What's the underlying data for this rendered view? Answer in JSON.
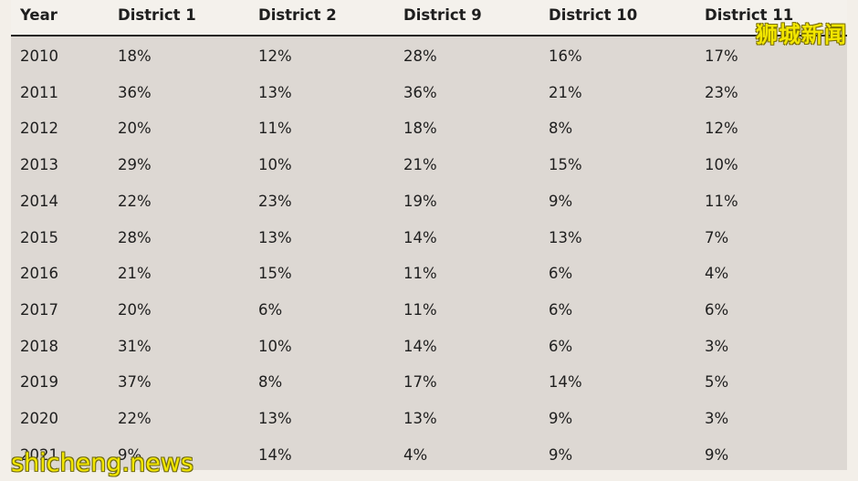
{
  "chart_data": {
    "type": "table",
    "columns": [
      "Year",
      "District 1",
      "District 2",
      "District 9",
      "District 10",
      "District 11"
    ],
    "rows": [
      [
        "2010",
        "18%",
        "12%",
        "28%",
        "16%",
        "17%"
      ],
      [
        "2011",
        "36%",
        "13%",
        "36%",
        "21%",
        "23%"
      ],
      [
        "2012",
        "20%",
        "11%",
        "18%",
        "8%",
        "12%"
      ],
      [
        "2013",
        "29%",
        "10%",
        "21%",
        "15%",
        "10%"
      ],
      [
        "2014",
        "22%",
        "23%",
        "19%",
        "9%",
        "11%"
      ],
      [
        "2015",
        "28%",
        "13%",
        "14%",
        "13%",
        "7%"
      ],
      [
        "2016",
        "21%",
        "15%",
        "11%",
        "6%",
        "4%"
      ],
      [
        "2017",
        "20%",
        "6%",
        "11%",
        "6%",
        "6%"
      ],
      [
        "2018",
        "31%",
        "10%",
        "14%",
        "6%",
        "3%"
      ],
      [
        "2019",
        "37%",
        "8%",
        "17%",
        "14%",
        "5%"
      ],
      [
        "2020",
        "22%",
        "13%",
        "13%",
        "9%",
        "3%"
      ],
      [
        "2021",
        "9%",
        "14%",
        "4%",
        "9%",
        "9%"
      ]
    ]
  },
  "watermarks": {
    "top_right": "狮城新闻",
    "bottom_left": "shicheng.news"
  },
  "colors": {
    "header_bg": "#f4f1ec",
    "body_bg": "#ddd8d3",
    "rule": "#1f1f1f",
    "text": "#1e1e1e",
    "watermark": "#f2e600"
  }
}
